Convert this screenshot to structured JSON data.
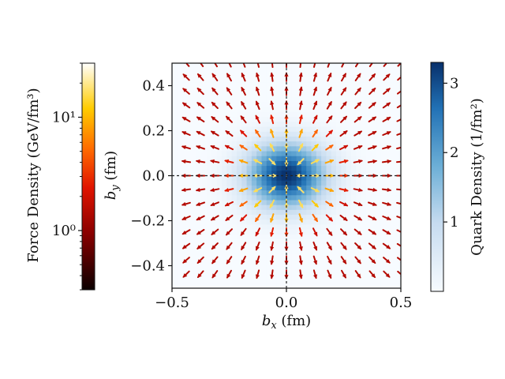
{
  "chart_data": {
    "type": "heatmap",
    "title": "",
    "xlabel": "b_x (fm)",
    "ylabel": "b_y (fm)",
    "xlim": [
      -0.5,
      0.5
    ],
    "ylim": [
      -0.5,
      0.5
    ],
    "x_ticks": [
      "−0.5",
      "0.0",
      "0.5"
    ],
    "y_ticks": [
      "0.4",
      "0.2",
      "0.0",
      "−0.2",
      "−0.4"
    ],
    "x_tick_values": [
      -0.5,
      0.0,
      0.5
    ],
    "y_tick_values": [
      0.4,
      0.2,
      0.0,
      -0.2,
      -0.4
    ],
    "crosshair": {
      "x": 0.0,
      "y": 0.0,
      "style": "dashed"
    },
    "quark_density_colorbar": {
      "label": "Quark Density (1/fm²)",
      "scale": "linear",
      "range": [
        0,
        3.3
      ],
      "ticks": [
        "1",
        "2",
        "3"
      ],
      "tick_values": [
        1,
        2,
        3
      ],
      "colormap": "Blues"
    },
    "force_density_colorbar": {
      "label": "Force Density (GeV/fm³)",
      "scale": "log",
      "range": [
        0.3,
        30
      ],
      "ticks": [
        "10⁰",
        "10¹"
      ],
      "tick_values": [
        1,
        10
      ],
      "colormap": "hot"
    },
    "density_model": {
      "peak": 3.3,
      "sigma_x": 0.12,
      "sigma_y": 0.1
    },
    "force_field": {
      "grid_spacing": 0.0625,
      "grid_start": -0.4375,
      "direction": "radially outward, flipped to inward near the origin"
    }
  }
}
